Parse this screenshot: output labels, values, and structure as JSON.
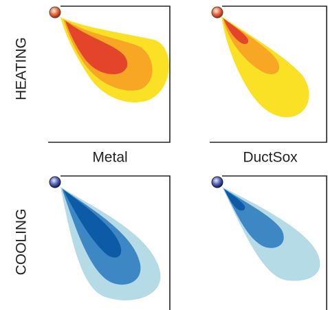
{
  "rows": {
    "heating": "HEATING",
    "cooling": "COOLING"
  },
  "columns": {
    "metal": "Metal",
    "ductsox": "DuctSox"
  }
}
